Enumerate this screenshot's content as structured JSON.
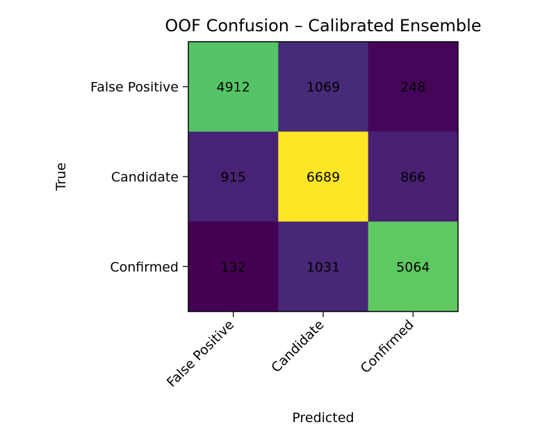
{
  "chart_data": {
    "type": "heatmap",
    "title": "OOF Confusion – Calibrated Ensemble",
    "xlabel": "Predicted",
    "ylabel": "True",
    "x_categories": [
      "False Positive",
      "Candidate",
      "Confirmed"
    ],
    "y_categories": [
      "False Positive",
      "Candidate",
      "Confirmed"
    ],
    "values": [
      [
        4912,
        1069,
        248
      ],
      [
        915,
        6689,
        866
      ],
      [
        132,
        1031,
        5064
      ]
    ],
    "colormap": "viridis",
    "grid": false
  }
}
